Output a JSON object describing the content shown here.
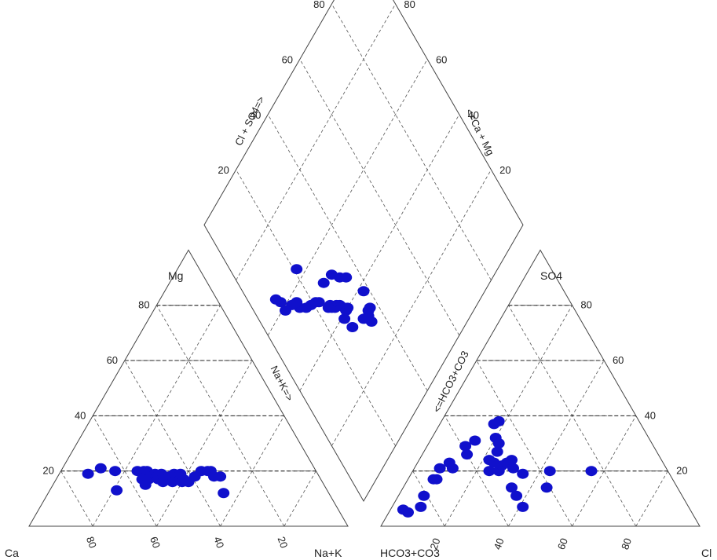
{
  "chart_data": {
    "type": "scatter",
    "subtype": "piper-trilinear",
    "grid": true,
    "marker_color": "#1010cc",
    "tick_values": [
      20,
      40,
      60,
      80
    ],
    "cation_triangle": {
      "corner_labels": {
        "left": "Ca",
        "top": "Mg",
        "right": "Na+K"
      },
      "points_mg_nak": [
        [
          19,
          9
        ],
        [
          21,
          12
        ],
        [
          20,
          17
        ],
        [
          13,
          21
        ],
        [
          20,
          24
        ],
        [
          20,
          26
        ],
        [
          20,
          27
        ],
        [
          17,
          27
        ],
        [
          17,
          29
        ],
        [
          15,
          29
        ],
        [
          19,
          30
        ],
        [
          18,
          31
        ],
        [
          19,
          32
        ],
        [
          17,
          32
        ],
        [
          17,
          33
        ],
        [
          17,
          34
        ],
        [
          16,
          34
        ],
        [
          18,
          35
        ],
        [
          19,
          36
        ],
        [
          16,
          37
        ],
        [
          19,
          38
        ],
        [
          17,
          39
        ],
        [
          17,
          40
        ],
        [
          16,
          40
        ],
        [
          16,
          42
        ],
        [
          18,
          43
        ],
        [
          20,
          44
        ],
        [
          20,
          46
        ],
        [
          20,
          47
        ],
        [
          18,
          49
        ],
        [
          18,
          51
        ],
        [
          12,
          55
        ]
      ]
    },
    "anion_triangle": {
      "corner_labels": {
        "left": "HCO3+CO3",
        "top": "SO4",
        "right": "Cl"
      },
      "points_so4_cl": [
        [
          6,
          4
        ],
        [
          5,
          6
        ],
        [
          7,
          9
        ],
        [
          11,
          8
        ],
        [
          17,
          8
        ],
        [
          17,
          9
        ],
        [
          21,
          8
        ],
        [
          23,
          10
        ],
        [
          21,
          12
        ],
        [
          26,
          14
        ],
        [
          29,
          12
        ],
        [
          31,
          14
        ],
        [
          37,
          17
        ],
        [
          38,
          18
        ],
        [
          32,
          20
        ],
        [
          30,
          22
        ],
        [
          27,
          23
        ],
        [
          24,
          22
        ],
        [
          23,
          24
        ],
        [
          20,
          24
        ],
        [
          20,
          27
        ],
        [
          22,
          27
        ],
        [
          23,
          28
        ],
        [
          24,
          29
        ],
        [
          21,
          31
        ],
        [
          11,
          37
        ],
        [
          7,
          41
        ],
        [
          14,
          34
        ],
        [
          14,
          45
        ],
        [
          19,
          35
        ],
        [
          20,
          56
        ],
        [
          20,
          43
        ]
      ]
    },
    "diamond": {
      "axis_labels": {
        "upper_left": "Cl + SO4=>",
        "upper_right": "<=Ca + Mg",
        "lower_left": "Na+K=>",
        "lower_right": "<=HCO3+CO3"
      },
      "points_clso4_camg": [
        [
          21,
          63
        ],
        [
          31,
          51
        ],
        [
          33,
          48
        ],
        [
          35,
          46
        ],
        [
          38,
          38
        ],
        [
          37,
          33
        ],
        [
          36,
          33
        ],
        [
          35,
          32
        ],
        [
          35,
          30
        ],
        [
          28,
          35
        ],
        [
          27,
          39
        ],
        [
          29,
          40
        ],
        [
          30,
          40
        ],
        [
          29,
          41
        ],
        [
          28,
          43
        ],
        [
          27,
          44
        ],
        [
          26,
          44
        ],
        [
          25,
          45
        ],
        [
          25,
          46
        ],
        [
          24,
          46
        ],
        [
          22,
          50
        ],
        [
          21,
          51
        ],
        [
          19,
          52
        ],
        [
          17,
          53
        ],
        [
          15,
          55
        ],
        [
          15,
          57
        ],
        [
          13,
          58
        ],
        [
          10,
          59
        ],
        [
          10,
          62
        ],
        [
          9,
          64
        ],
        [
          33,
          33
        ],
        [
          27,
          52
        ]
      ]
    }
  }
}
